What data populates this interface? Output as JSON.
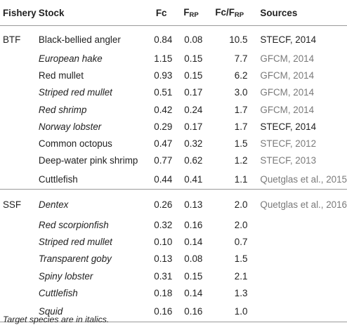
{
  "headers": {
    "fishery": "Fishery",
    "stock": "Stock",
    "fc": "Fc",
    "frp_main": "F",
    "frp_sub": "RP",
    "ratio_main": "Fc/F",
    "ratio_sub": "RP",
    "sources": "Sources"
  },
  "groups": [
    {
      "fishery": "BTF",
      "rows": [
        {
          "stock": "Black-bellied angler",
          "italic": false,
          "fc": "0.84",
          "frp": "0.08",
          "ratio": "10.5",
          "source": "STECF, 2014",
          "source_tone": "dark"
        },
        {
          "stock": "European hake",
          "italic": true,
          "fc": "1.15",
          "frp": "0.15",
          "ratio": "7.7",
          "source": "GFCM, 2014",
          "source_tone": "grey"
        },
        {
          "stock": "Red mullet",
          "italic": false,
          "fc": "0.93",
          "frp": "0.15",
          "ratio": "6.2",
          "source": "GFCM, 2014",
          "source_tone": "grey"
        },
        {
          "stock": "Striped red mullet",
          "italic": true,
          "fc": "0.51",
          "frp": "0.17",
          "ratio": "3.0",
          "source": "GFCM, 2014",
          "source_tone": "grey"
        },
        {
          "stock": "Red shrimp",
          "italic": true,
          "fc": "0.42",
          "frp": "0.24",
          "ratio": "1.7",
          "source": "GFCM, 2014",
          "source_tone": "grey"
        },
        {
          "stock": "Norway lobster",
          "italic": true,
          "fc": "0.29",
          "frp": "0.17",
          "ratio": "1.7",
          "source": "STECF, 2014",
          "source_tone": "dark"
        },
        {
          "stock": "Common octopus",
          "italic": false,
          "fc": "0.47",
          "frp": "0.32",
          "ratio": "1.5",
          "source": "STECF, 2012",
          "source_tone": "grey"
        },
        {
          "stock": "Deep-water pink shrimp",
          "italic": false,
          "fc": "0.77",
          "frp": "0.62",
          "ratio": "1.2",
          "source": "STECF, 2013",
          "source_tone": "grey"
        },
        {
          "stock": "Cuttlefish",
          "italic": false,
          "fc": "0.44",
          "frp": "0.41",
          "ratio": "1.1",
          "source": "Quetglas et al., 2015",
          "source_tone": "grey"
        }
      ]
    },
    {
      "fishery": "SSF",
      "rows": [
        {
          "stock": "Dentex",
          "italic": true,
          "fc": "0.26",
          "frp": "0.13",
          "ratio": "2.0",
          "source": "Quetglas et al., 2016",
          "source_tone": "grey"
        },
        {
          "stock": "Red scorpionfish",
          "italic": true,
          "fc": "0.32",
          "frp": "0.16",
          "ratio": "2.0",
          "source": "",
          "source_tone": "grey"
        },
        {
          "stock": "Striped red mullet",
          "italic": true,
          "fc": "0.10",
          "frp": "0.14",
          "ratio": "0.7",
          "source": "",
          "source_tone": "grey"
        },
        {
          "stock": "Transparent goby",
          "italic": true,
          "fc": "0.13",
          "frp": "0.08",
          "ratio": "1.5",
          "source": "",
          "source_tone": "grey"
        },
        {
          "stock": "Spiny lobster",
          "italic": true,
          "fc": "0.31",
          "frp": "0.15",
          "ratio": "2.1",
          "source": "",
          "source_tone": "grey"
        },
        {
          "stock": "Cuttlefish",
          "italic": true,
          "fc": "0.18",
          "frp": "0.14",
          "ratio": "1.3",
          "source": "",
          "source_tone": "grey"
        },
        {
          "stock": "Squid",
          "italic": true,
          "fc": "0.16",
          "frp": "0.16",
          "ratio": "1.0",
          "source": "",
          "source_tone": "grey"
        }
      ]
    }
  ],
  "footnote": "Target species are in italics."
}
